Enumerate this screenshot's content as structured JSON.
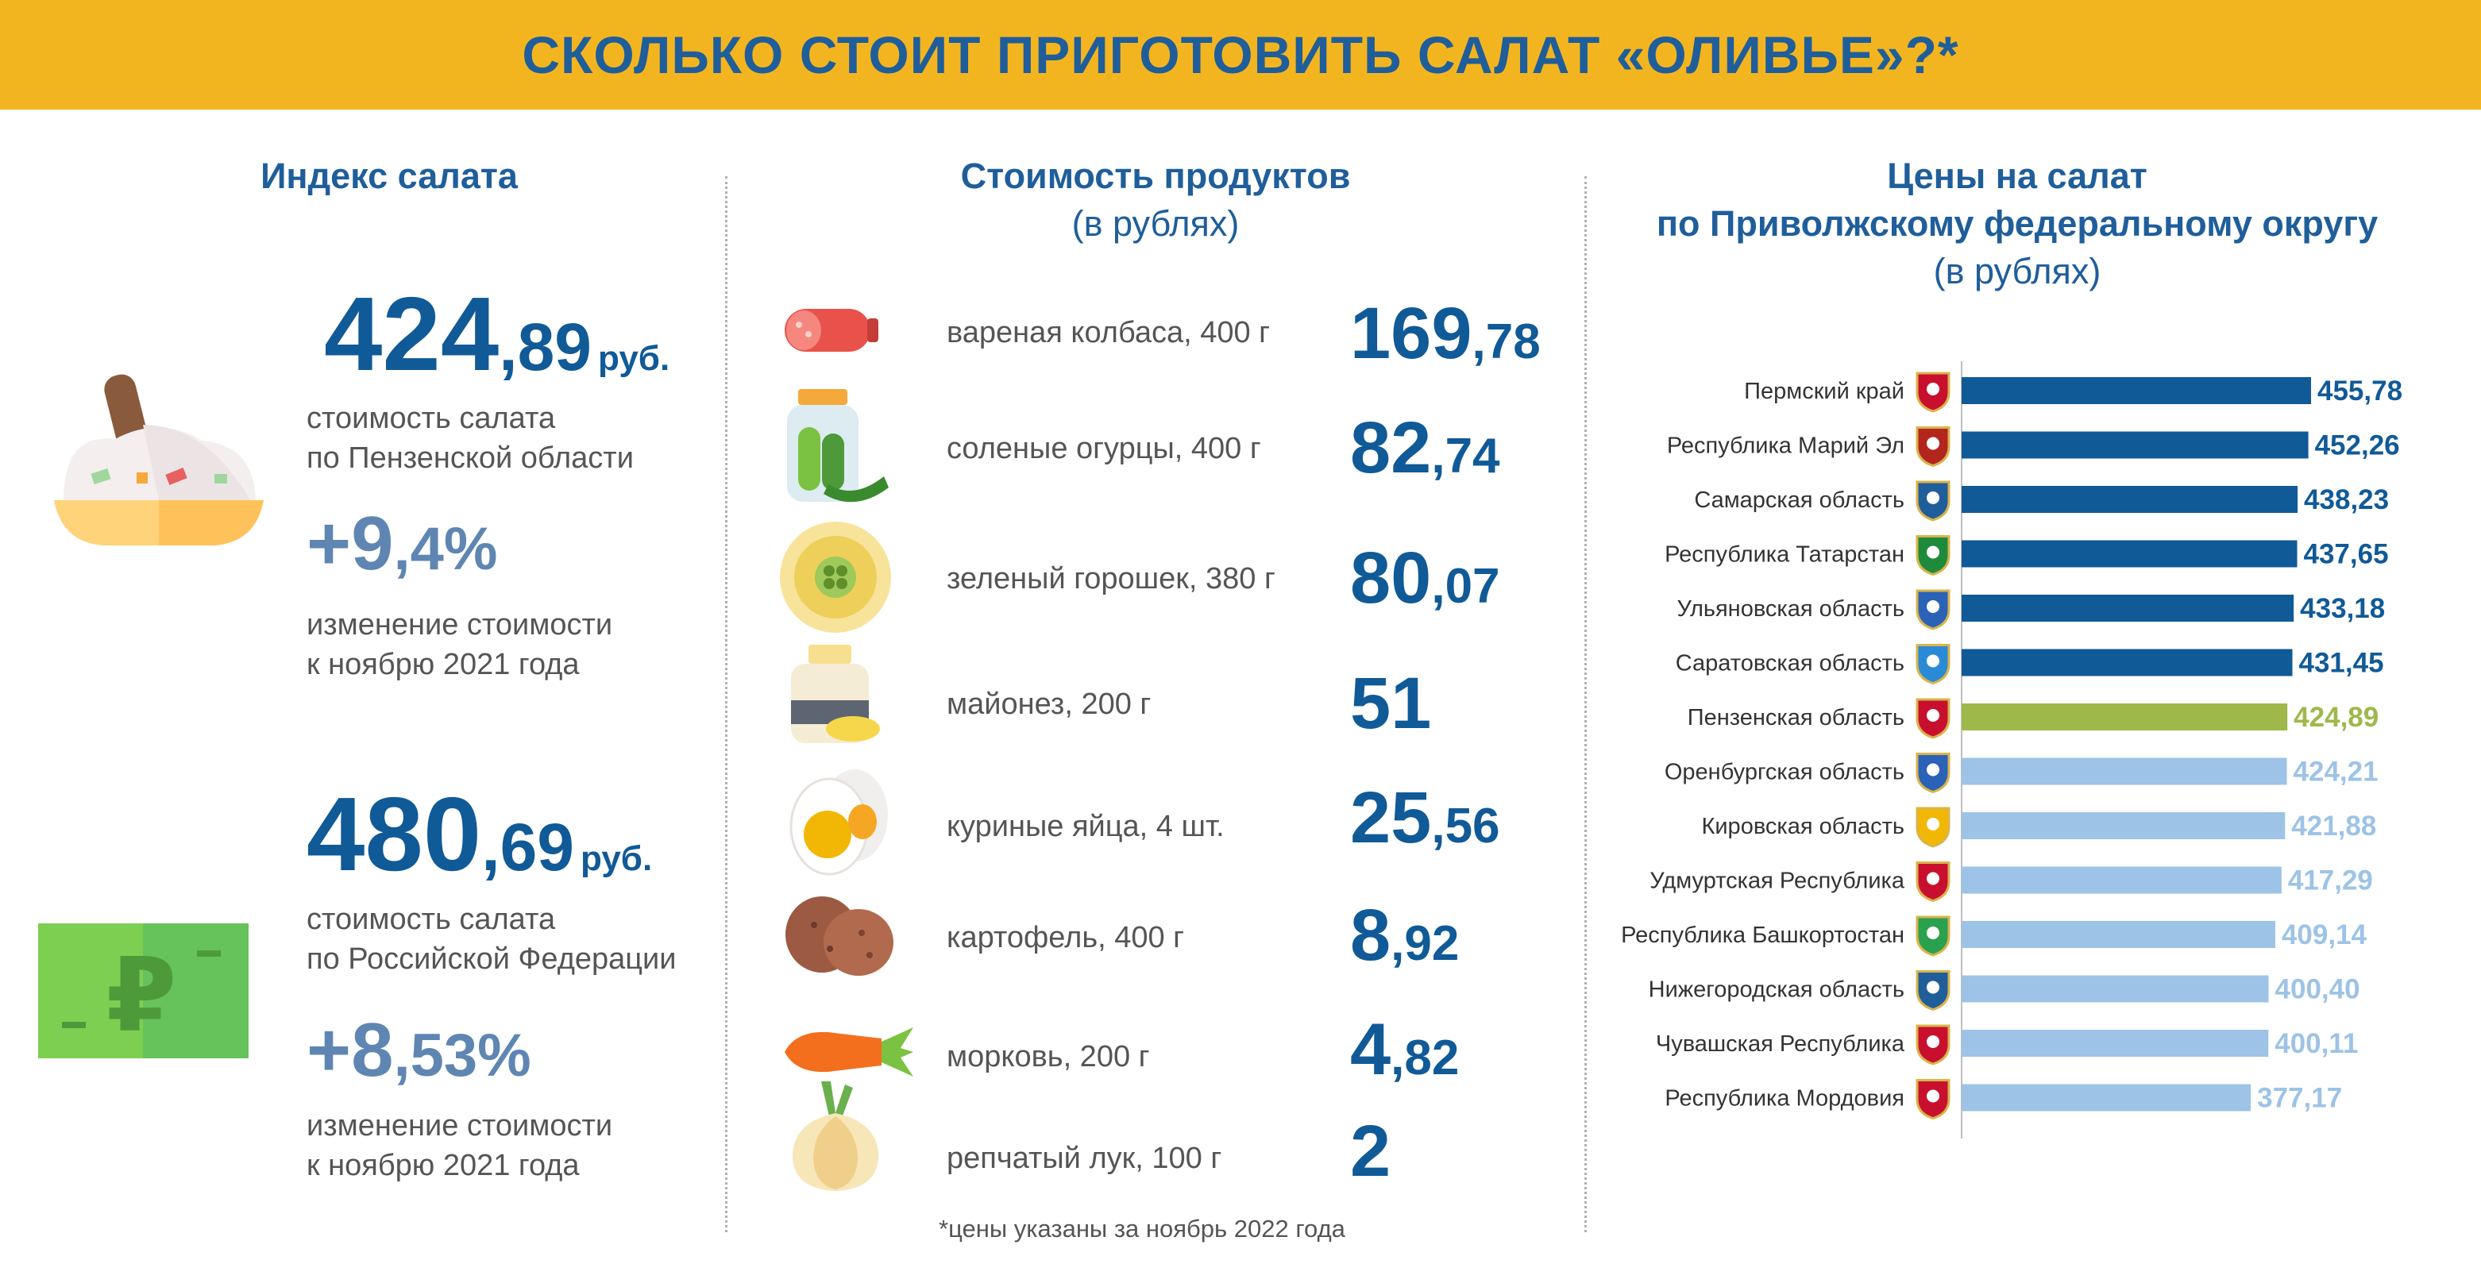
{
  "header": {
    "title": "СКОЛЬКО СТОИТ ПРИГОТОВИТЬ САЛАТ «ОЛИВЬЕ»?*"
  },
  "index": {
    "title": "Индекс салата",
    "penza": {
      "int": "424",
      "dec": ",89",
      "currency": "руб.",
      "line1": "стоимость салата",
      "line2": "по Пензенской области"
    },
    "penza_change": {
      "int": "+9",
      "dec": ",4%",
      "line1": "изменение стоимости",
      "line2": "к ноябрю 2021 года"
    },
    "russia": {
      "int": "480",
      "dec": ",69",
      "currency": "руб.",
      "line1": "стоимость салата",
      "line2": "по Российской Федерации"
    },
    "russia_change": {
      "int": "+8",
      "dec": ",53%",
      "line1": "изменение стоимости",
      "line2": "к ноябрю 2021 года"
    }
  },
  "products": {
    "title": "Стоимость продуктов",
    "subtitle": "(в рублях)",
    "footnote": "*цены указаны за ноябрь 2022 года",
    "items": [
      {
        "label": "вареная колбаса, 400 г",
        "int": "169",
        "dec": ",78",
        "icon": "sausage-icon"
      },
      {
        "label": "соленые огурцы, 400 г",
        "int": "82",
        "dec": ",74",
        "icon": "pickles-jar-icon"
      },
      {
        "label": "зеленый горошек, 380 г",
        "int": "80",
        "dec": ",07",
        "icon": "green-peas-icon"
      },
      {
        "label": "майонез, 200 г",
        "int": "51",
        "dec": "",
        "icon": "mayonnaise-icon"
      },
      {
        "label": "куриные яйца, 4 шт.",
        "int": "25",
        "dec": ",56",
        "icon": "boiled-egg-icon"
      },
      {
        "label": "картофель, 400 г",
        "int": "8",
        "dec": ",92",
        "icon": "potato-icon"
      },
      {
        "label": "морковь, 200 г",
        "int": "4",
        "dec": ",82",
        "icon": "carrot-icon"
      },
      {
        "label": "репчатый лук, 100 г",
        "int": "2",
        "dec": "",
        "icon": "onion-icon"
      }
    ]
  },
  "regions": {
    "title1": "Цены на салат",
    "title2": "по Приволжскому федеральному округу",
    "subtitle": "(в рублях)"
  },
  "colors": {
    "top": "#105a97",
    "highlight": "#9eb84a",
    "other": "#9dc3e6",
    "banner": "#f3b51f"
  },
  "chart_data": {
    "type": "bar",
    "orientation": "horizontal",
    "categories": [
      "Пермский край",
      "Республика Марий Эл",
      "Самарская область",
      "Республика Татарстан",
      "Ульяновская область",
      "Саратовская область",
      "Пензенская область",
      "Оренбургская область",
      "Кировская область",
      "Удмуртская Республика",
      "Республика Башкортостан",
      "Нижегородская область",
      "Чувашская Республика",
      "Республика Мордовия"
    ],
    "values": [
      455.78,
      452.26,
      438.23,
      437.65,
      433.18,
      431.45,
      424.89,
      424.21,
      421.88,
      417.29,
      409.14,
      400.4,
      400.11,
      377.17
    ],
    "labels": [
      "455,78",
      "452,26",
      "438,23",
      "437,65",
      "433,18",
      "431,45",
      "424,89",
      "424,21",
      "421,88",
      "417,29",
      "409,14",
      "400,40",
      "400,11",
      "377,17"
    ],
    "color_groups": [
      "top",
      "top",
      "top",
      "top",
      "top",
      "top",
      "highlight",
      "other",
      "other",
      "other",
      "other",
      "other",
      "other",
      "other"
    ],
    "xlim": [
      0,
      455.78
    ],
    "grid": false,
    "legend": "none"
  }
}
